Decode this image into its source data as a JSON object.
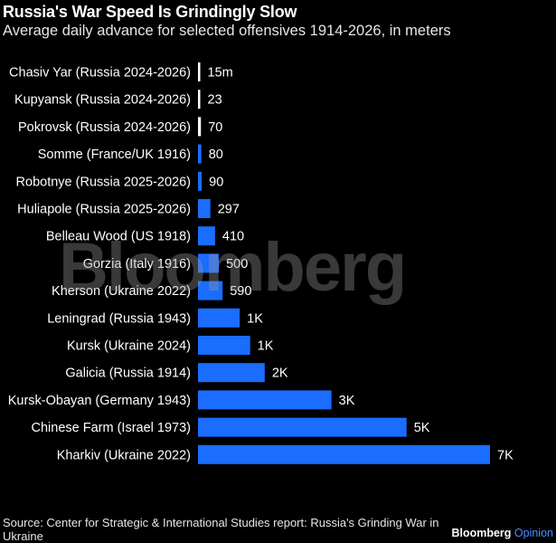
{
  "title": "Russia's War Speed Is Grindingly Slow",
  "subtitle": "Average daily advance for selected offensives 1914-2026, in meters",
  "watermark": "Bloomberg",
  "source": "Source: Center for Strategic & International Studies report: Russia's Grinding War in Ukraine",
  "brand": {
    "name": "Bloomberg",
    "suffix": "Opinion"
  },
  "colors": {
    "highlight": "#ffffff",
    "bar": "#1a6dff",
    "background": "#000000"
  },
  "chart_data": {
    "type": "bar",
    "orientation": "horizontal",
    "title": "Russia's War Speed Is Grindingly Slow",
    "subtitle": "Average daily advance for selected offensives 1914-2026, in meters",
    "unit": "meters",
    "categories": [
      "Chasiv Yar (Russia 2024-2026)",
      "Kupyansk (Russia 2024-2026)",
      "Pokrovsk (Russia 2024-2026)",
      "Somme (France/UK 1916)",
      "Robotnye (Russia 2025-2026)",
      "Huliapole (Russia 2025-2026)",
      "Belleau Wood (US 1918)",
      "Gorzia (Italy 1916)",
      "Kherson (Ukraine 2022)",
      "Leningrad (Russia 1943)",
      "Kursk (Ukraine 2024)",
      "Galicia (Russia 1914)",
      "Kursk-Obayan (Germany 1943)",
      "Chinese Farm (Israel 1973)",
      "Kharkiv (Ukraine 2022)"
    ],
    "values": [
      15,
      23,
      70,
      80,
      90,
      297,
      410,
      500,
      590,
      1000,
      1250,
      1600,
      3200,
      5000,
      7000
    ],
    "value_labels": [
      "15m",
      "23",
      "70",
      "80",
      "90",
      "297",
      "410",
      "500",
      "590",
      "1K",
      "1K",
      "2K",
      "3K",
      "5K",
      "7K"
    ],
    "highlighted": [
      true,
      true,
      true,
      false,
      false,
      false,
      false,
      false,
      false,
      false,
      false,
      false,
      false,
      false,
      false
    ],
    "xlim": [
      0,
      7000
    ],
    "grid": false,
    "legend": "none"
  }
}
